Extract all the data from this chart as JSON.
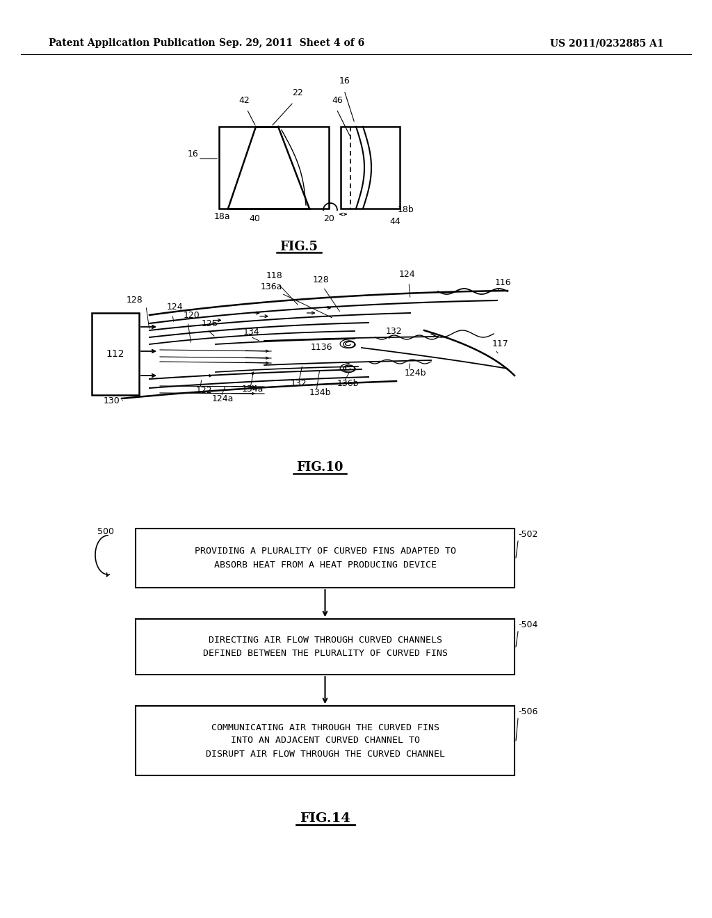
{
  "bg_color": "#ffffff",
  "line_color": "#000000",
  "header_left": "Patent Application Publication",
  "header_center": "Sep. 29, 2011  Sheet 4 of 6",
  "header_right": "US 2011/0232885 A1",
  "fig5_label": "FIG.5",
  "fig10_label": "FIG.10",
  "fig14_label": "FIG.14",
  "box502_text": "PROVIDING A PLURALITY OF CURVED FINS ADAPTED TO\nABSORB HEAT FROM A HEAT PRODUCING DEVICE",
  "box504_text": "DIRECTING AIR FLOW THROUGH CURVED CHANNELS\nDEFINED BETWEEN THE PLURALITY OF CURVED FINS",
  "box506_text": "COMMUNICATING AIR THROUGH THE CURVED FINS\nINTO AN ADJACENT CURVED CHANNEL TO\nDISRUPT AIR FLOW THROUGH THE CURVED CHANNEL",
  "label500": "500",
  "label502": "-502",
  "label504": "-504",
  "label506": "-506"
}
